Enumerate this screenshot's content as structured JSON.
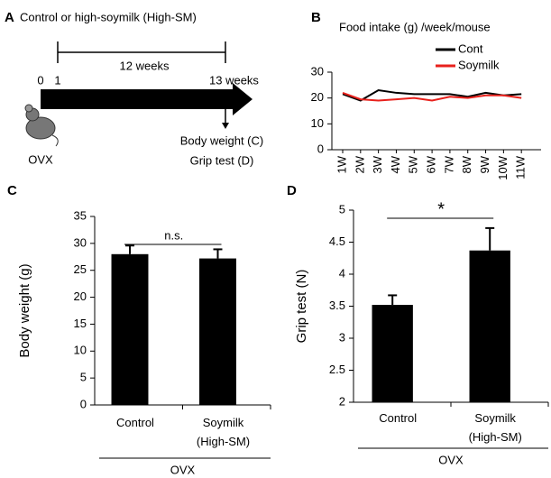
{
  "diagram": {
    "panel_label": "A",
    "title": "Control or high-soymilk (High-SM)",
    "duration": "12 weeks",
    "start": "0",
    "week1": "1",
    "end": "13 weeks",
    "outcome1": "Body weight (C)",
    "outcome2": "Grip test (D)",
    "model": "OVX"
  },
  "chart_data": [
    {
      "type": "line",
      "panel_label": "B",
      "title": "Food intake (g) /week/mouse",
      "categories": [
        "1W",
        "2W",
        "3W",
        "4W",
        "5W",
        "6W",
        "7W",
        "8W",
        "9W",
        "10W",
        "11W"
      ],
      "series": [
        {
          "name": "Cont",
          "color": "#000000",
          "values": [
            21.5,
            19,
            23,
            22,
            21.5,
            21.5,
            21.5,
            20.5,
            22,
            21,
            21.5
          ]
        },
        {
          "name": "Soymilk",
          "color": "#e8211c",
          "values": [
            22,
            19.5,
            19,
            19.5,
            20,
            19,
            20.5,
            20,
            21,
            21,
            20
          ]
        }
      ],
      "ylim": [
        0,
        30
      ],
      "yticks": [
        0,
        10,
        20,
        30
      ],
      "legend": "upper right"
    },
    {
      "type": "bar",
      "panel_label": "C",
      "y_label": "Body weight (g)",
      "categories": [
        "Control",
        "Soymilk\n(High-SM)"
      ],
      "values": [
        28,
        27.2
      ],
      "errors": [
        1.6,
        1.7
      ],
      "color": "#000000",
      "ylim": [
        0,
        35
      ],
      "yticks": [
        0,
        5,
        10,
        15,
        20,
        25,
        30,
        35
      ],
      "annotation": "n.s.",
      "group_label": "OVX"
    },
    {
      "type": "bar",
      "panel_label": "D",
      "y_label": "Grip test (N)",
      "categories": [
        "Control",
        "Soymilk\n(High-SM)"
      ],
      "values": [
        3.52,
        4.37
      ],
      "errors": [
        0.15,
        0.35
      ],
      "color": "#000000",
      "ylim": [
        2,
        5
      ],
      "yticks": [
        2,
        2.5,
        3,
        3.5,
        4,
        4.5,
        5
      ],
      "annotation": "*",
      "group_label": "OVX"
    }
  ]
}
